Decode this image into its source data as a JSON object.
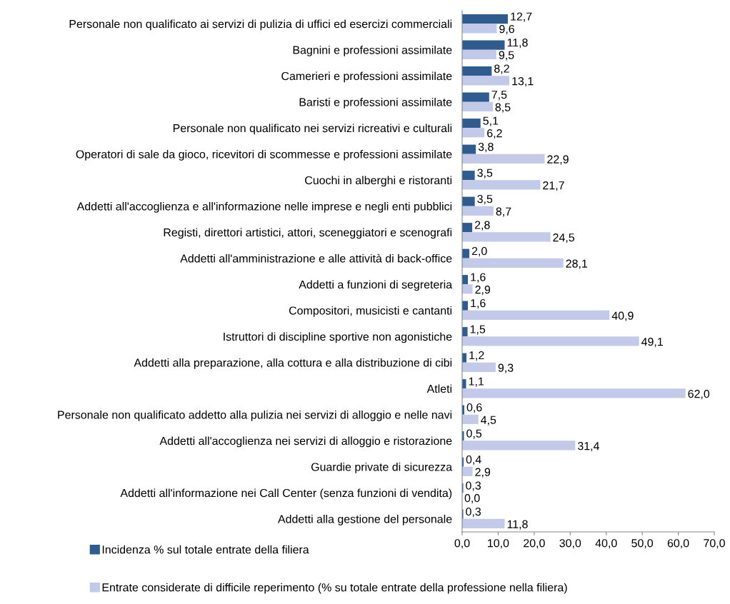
{
  "chart_data": {
    "type": "bar",
    "orientation": "horizontal",
    "legend": "bottom",
    "categories": [
      "Personale non qualificato ai servizi di pulizia di uffici ed esercizi commerciali",
      "Bagnini e professioni assimilate",
      "Camerieri e professioni assimilate",
      "Baristi e professioni assimilate",
      "Personale non qualificato nei servizi ricreativi e culturali",
      "Operatori di sale da gioco, ricevitori di scommesse e professioni assimilate",
      "Cuochi in alberghi e ristoranti",
      "Addetti all'accoglienza e all'informazione nelle imprese e negli enti pubblici",
      "Registi, direttori artistici, attori, sceneggiatori e scenografi",
      "Addetti all'amministrazione e alle attività di back-office",
      "Addetti a funzioni di segreteria",
      "Compositori, musicisti e cantanti",
      "Istruttori di discipline sportive non agonistiche",
      "Addetti alla preparazione, alla cottura e alla distribuzione di cibi",
      "Atleti",
      "Personale non qualificato addetto alla pulizia nei servizi di alloggio e nelle navi",
      "Addetti all'accoglienza nei servizi di alloggio e ristorazione",
      "Guardie private di sicurezza",
      "Addetti all'informazione nei Call Center (senza funzioni di vendita)",
      "Addetti alla gestione del personale"
    ],
    "series": [
      {
        "name": "Incidenza % sul totale entrate della filiera",
        "color": "#2f5b8e",
        "values": [
          12.7,
          11.8,
          8.2,
          7.5,
          5.1,
          3.8,
          3.5,
          3.5,
          2.8,
          2.0,
          1.6,
          1.6,
          1.5,
          1.2,
          1.1,
          0.6,
          0.5,
          0.4,
          0.3,
          0.3
        ],
        "value_labels": [
          "12,7",
          "11,8",
          "8,2",
          "7,5",
          "5,1",
          "3,8",
          "3,5",
          "3,5",
          "2,8",
          "2,0",
          "1,6",
          "1,6",
          "1,5",
          "1,2",
          "1,1",
          "0,6",
          "0,5",
          "0,4",
          "0,3",
          "0,3"
        ]
      },
      {
        "name": "Entrate considerate di difficile reperimento (% su totale entrate della professione nella filiera)",
        "color": "#c3c9e9",
        "values": [
          9.6,
          9.5,
          13.1,
          8.5,
          6.2,
          22.9,
          21.7,
          8.7,
          24.5,
          28.1,
          2.9,
          40.9,
          49.1,
          9.3,
          62.0,
          4.5,
          31.4,
          2.9,
          0.0,
          11.8
        ],
        "value_labels": [
          "9,6",
          "9,5",
          "13,1",
          "8,5",
          "6,2",
          "22,9",
          "21,7",
          "8,7",
          "24,5",
          "28,1",
          "2,9",
          "40,9",
          "49,1",
          "9,3",
          "62,0",
          "4,5",
          "31,4",
          "2,9",
          "0,0",
          "11,8"
        ]
      }
    ],
    "xlim": [
      0,
      70
    ],
    "xticks": [
      {
        "value": 0,
        "label": "0,0"
      },
      {
        "value": 10,
        "label": "10,0"
      },
      {
        "value": 20,
        "label": "20,0"
      },
      {
        "value": 30,
        "label": "30,0"
      },
      {
        "value": 40,
        "label": "40,0"
      },
      {
        "value": 50,
        "label": "50,0"
      },
      {
        "value": 60,
        "label": "60,0"
      },
      {
        "value": 70,
        "label": "70,0"
      }
    ]
  }
}
